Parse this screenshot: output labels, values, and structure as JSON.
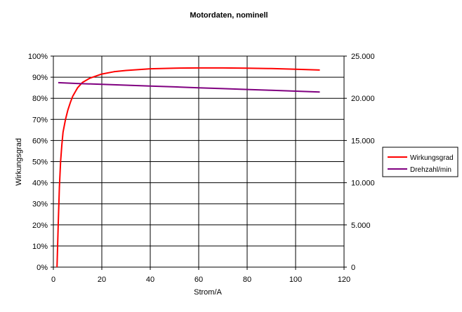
{
  "chart_data": {
    "type": "line",
    "title": "Motordaten, nominell",
    "xlabel": "Strom/A",
    "ylabel": "Wirkungsgrad",
    "y2label": "",
    "xlim": [
      0,
      120
    ],
    "ylim": [
      0,
      100
    ],
    "y2lim": [
      0,
      25000
    ],
    "x_ticks": [
      "0",
      "20",
      "40",
      "60",
      "80",
      "100",
      "120"
    ],
    "y_ticks": [
      "0%",
      "10%",
      "20%",
      "30%",
      "40%",
      "50%",
      "60%",
      "70%",
      "80%",
      "90%",
      "100%"
    ],
    "y2_ticks": [
      "0",
      "5.000",
      "10.000",
      "15.000",
      "20.000",
      "25.000"
    ],
    "grid": true,
    "legend_position": "right",
    "series": [
      {
        "name": "Wirkungsgrad",
        "axis": "left",
        "unit": "percent",
        "color": "#ff0000",
        "x": [
          1.5,
          2,
          2.5,
          3,
          3.5,
          4,
          5,
          6,
          7,
          8,
          10,
          12,
          15,
          20,
          25,
          30,
          40,
          50,
          60,
          70,
          80,
          90,
          100,
          110
        ],
        "values": [
          0,
          20,
          38,
          50,
          58,
          64,
          70,
          74.5,
          78,
          81,
          85,
          87.5,
          89.5,
          91.5,
          92.6,
          93.2,
          94,
          94.3,
          94.4,
          94.4,
          94.3,
          94.1,
          93.8,
          93.4
        ]
      },
      {
        "name": "Drehzahl/min",
        "axis": "right",
        "unit": "rpm",
        "color": "#800080",
        "x": [
          2,
          10,
          20,
          30,
          40,
          50,
          60,
          70,
          80,
          90,
          100,
          110
        ],
        "values": [
          21850,
          21750,
          21650,
          21550,
          21450,
          21350,
          21250,
          21150,
          21050,
          20950,
          20850,
          20750
        ]
      }
    ]
  }
}
